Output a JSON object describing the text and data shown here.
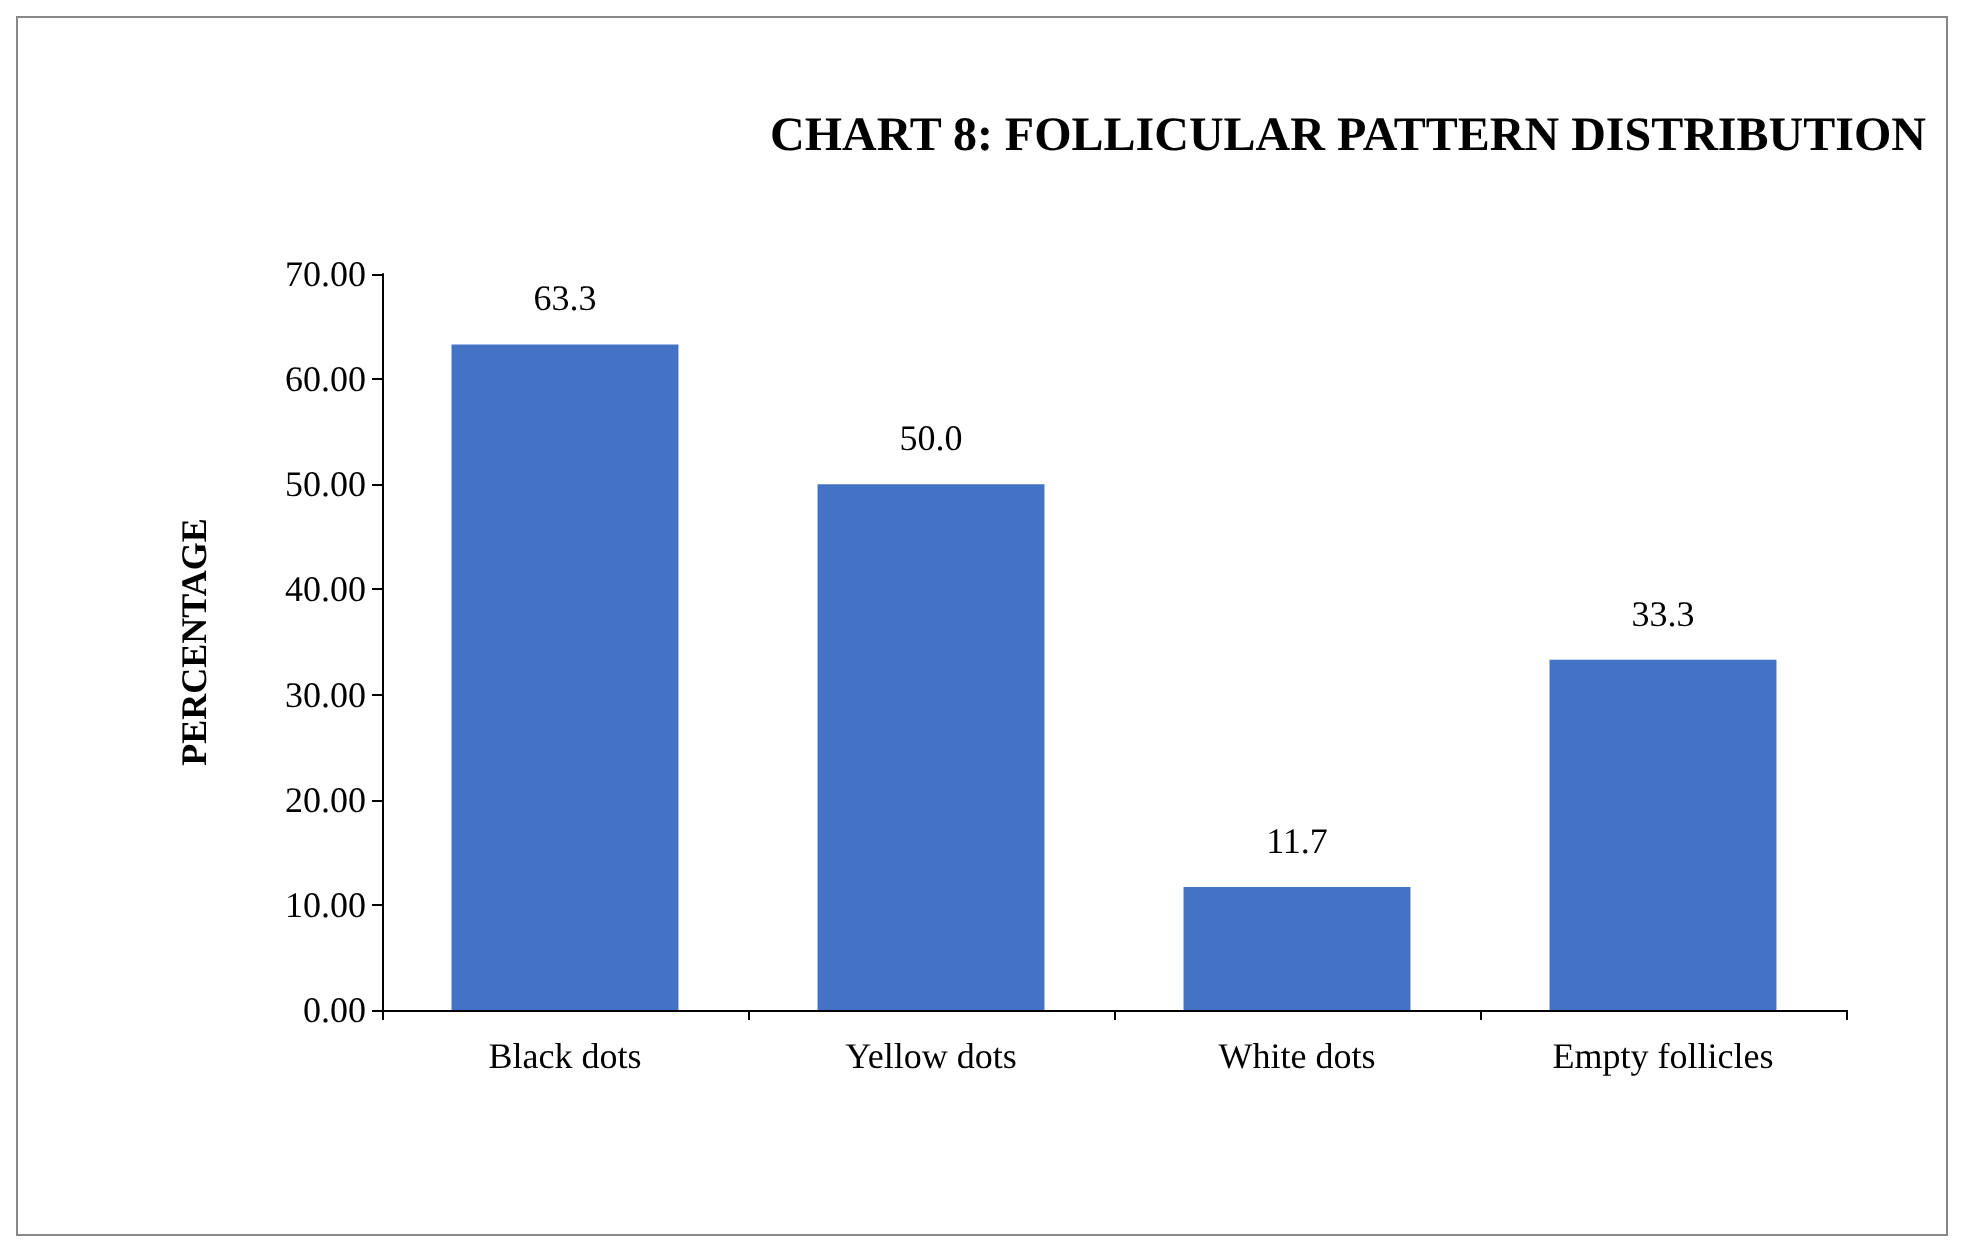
{
  "chart_data": {
    "type": "bar",
    "title": "CHART 8: FOLLICULAR PATTERN DISTRIBUTION",
    "ylabel": "PERCENTAGE",
    "categories": [
      "Black dots",
      "Yellow dots",
      "White dots",
      "Empty follicles"
    ],
    "values": [
      63.3,
      50.0,
      11.7,
      33.3
    ],
    "value_labels": [
      "63.3",
      "50.0",
      "11.7",
      "33.3"
    ],
    "color": "#4472c4",
    "ylim": [
      0,
      70
    ],
    "yticks": [
      {
        "value": 0,
        "label": "0.00"
      },
      {
        "value": 10,
        "label": "10.00"
      },
      {
        "value": 20,
        "label": "20.00"
      },
      {
        "value": 30,
        "label": "30.00"
      },
      {
        "value": 40,
        "label": "40.00"
      },
      {
        "value": 50,
        "label": "50.00"
      },
      {
        "value": 60,
        "label": "60.00"
      },
      {
        "value": 70,
        "label": "70.00"
      }
    ],
    "grid": false
  }
}
